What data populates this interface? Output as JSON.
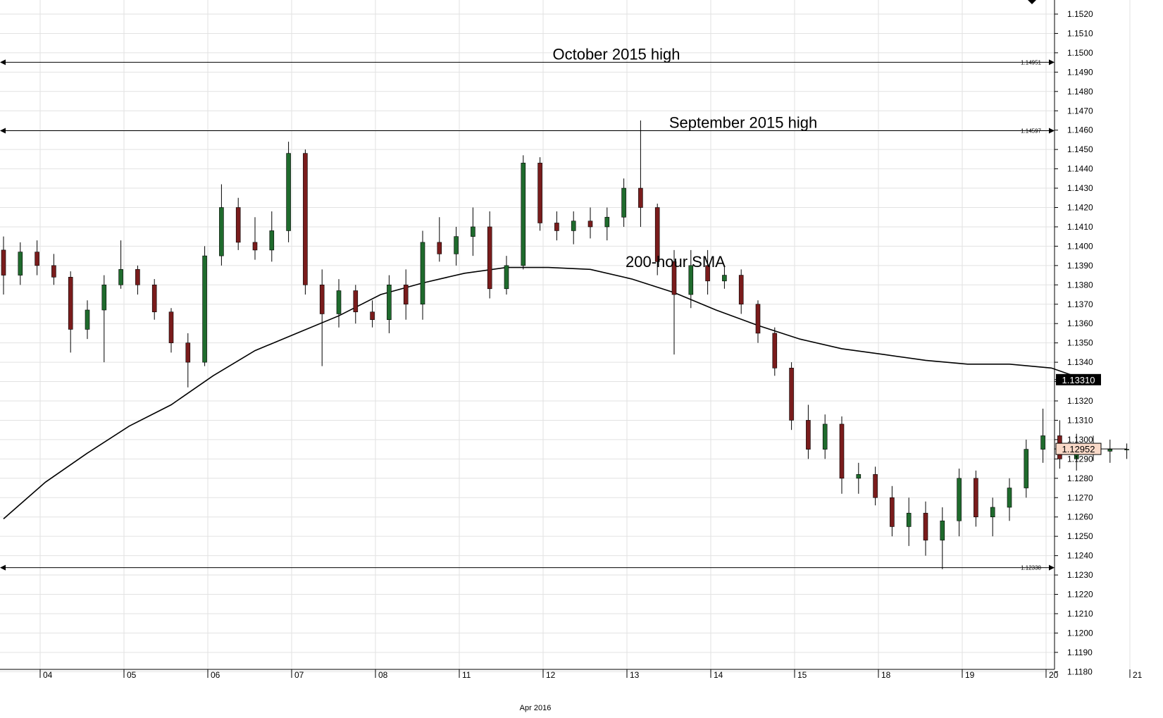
{
  "chart_data": {
    "type": "candlestick",
    "month_label": "Apr 2016",
    "x_ticks": [
      "04",
      "05",
      "06",
      "07",
      "08",
      "11",
      "12",
      "13",
      "14",
      "15",
      "18",
      "19",
      "20",
      "21"
    ],
    "y_ticks": [
      "1.1180",
      "1.1190",
      "1.1200",
      "1.1210",
      "1.1220",
      "1.1230",
      "1.1240",
      "1.1250",
      "1.1260",
      "1.1270",
      "1.1280",
      "1.1290",
      "1.1300",
      "1.1310",
      "1.1320",
      "1.1330",
      "1.1340",
      "1.1350",
      "1.1360",
      "1.1370",
      "1.1380",
      "1.1390",
      "1.1400",
      "1.1410",
      "1.1420",
      "1.1430",
      "1.1440",
      "1.1450",
      "1.1460",
      "1.1470",
      "1.1480",
      "1.1490",
      "1.1500",
      "1.1510",
      "1.1520"
    ],
    "ylim": [
      1.1173,
      1.1527
    ],
    "grid": true,
    "horizontal_lines": [
      {
        "value": 1.14951,
        "label": "October 2015 high",
        "tag": "1.14951"
      },
      {
        "value": 1.14597,
        "label": "September 2015 high",
        "tag": "1.14597"
      },
      {
        "value": 1.12338,
        "label": "",
        "tag": "1.12338"
      }
    ],
    "sma": {
      "label": "200-hour SMA",
      "last_value_label": "1.13310",
      "points": [
        {
          "t": 0.0,
          "v": 1.1259
        },
        {
          "t": 0.5,
          "v": 1.1278
        },
        {
          "t": 1.0,
          "v": 1.1293
        },
        {
          "t": 1.5,
          "v": 1.1307
        },
        {
          "t": 2.0,
          "v": 1.1318
        },
        {
          "t": 2.5,
          "v": 1.1333
        },
        {
          "t": 3.0,
          "v": 1.1346
        },
        {
          "t": 3.5,
          "v": 1.1355
        },
        {
          "t": 4.0,
          "v": 1.1364
        },
        {
          "t": 4.5,
          "v": 1.1375
        },
        {
          "t": 5.0,
          "v": 1.1381
        },
        {
          "t": 5.5,
          "v": 1.1386
        },
        {
          "t": 6.0,
          "v": 1.1389
        },
        {
          "t": 6.5,
          "v": 1.1389
        },
        {
          "t": 7.0,
          "v": 1.1388
        },
        {
          "t": 7.5,
          "v": 1.1383
        },
        {
          "t": 8.0,
          "v": 1.1376
        },
        {
          "t": 8.5,
          "v": 1.1367
        },
        {
          "t": 9.0,
          "v": 1.1359
        },
        {
          "t": 9.5,
          "v": 1.1352
        },
        {
          "t": 10.0,
          "v": 1.1347
        },
        {
          "t": 10.5,
          "v": 1.1344
        },
        {
          "t": 11.0,
          "v": 1.1341
        },
        {
          "t": 11.5,
          "v": 1.1339
        },
        {
          "t": 12.0,
          "v": 1.1339
        },
        {
          "t": 12.5,
          "v": 1.1337
        },
        {
          "t": 12.9,
          "v": 1.1331
        }
      ]
    },
    "last_price_label": "1.12952",
    "last_price_value": 1.12952,
    "ohlc": [
      {
        "t": 0.0,
        "o": 1.1398,
        "h": 1.1405,
        "l": 1.1375,
        "c": 1.1385
      },
      {
        "t": 0.2,
        "o": 1.1385,
        "h": 1.1402,
        "l": 1.138,
        "c": 1.1397
      },
      {
        "t": 0.4,
        "o": 1.1397,
        "h": 1.1403,
        "l": 1.1385,
        "c": 1.139
      },
      {
        "t": 0.6,
        "o": 1.139,
        "h": 1.1396,
        "l": 1.138,
        "c": 1.1384
      },
      {
        "t": 0.8,
        "o": 1.1384,
        "h": 1.1387,
        "l": 1.1345,
        "c": 1.1357
      },
      {
        "t": 1.0,
        "o": 1.1357,
        "h": 1.1372,
        "l": 1.1352,
        "c": 1.1367
      },
      {
        "t": 1.2,
        "o": 1.1367,
        "h": 1.1385,
        "l": 1.134,
        "c": 1.138
      },
      {
        "t": 1.4,
        "o": 1.138,
        "h": 1.1403,
        "l": 1.1378,
        "c": 1.1388
      },
      {
        "t": 1.6,
        "o": 1.1388,
        "h": 1.139,
        "l": 1.1375,
        "c": 1.138
      },
      {
        "t": 1.8,
        "o": 1.138,
        "h": 1.1383,
        "l": 1.1362,
        "c": 1.1366
      },
      {
        "t": 2.0,
        "o": 1.1366,
        "h": 1.1368,
        "l": 1.1345,
        "c": 1.135
      },
      {
        "t": 2.2,
        "o": 1.135,
        "h": 1.1355,
        "l": 1.1327,
        "c": 1.134
      },
      {
        "t": 2.4,
        "o": 1.134,
        "h": 1.14,
        "l": 1.1338,
        "c": 1.1395
      },
      {
        "t": 2.6,
        "o": 1.1395,
        "h": 1.1432,
        "l": 1.139,
        "c": 1.142
      },
      {
        "t": 2.8,
        "o": 1.142,
        "h": 1.1425,
        "l": 1.1398,
        "c": 1.1402
      },
      {
        "t": 3.0,
        "o": 1.1402,
        "h": 1.1415,
        "l": 1.1393,
        "c": 1.1398
      },
      {
        "t": 3.2,
        "o": 1.1398,
        "h": 1.1418,
        "l": 1.1392,
        "c": 1.1408
      },
      {
        "t": 3.4,
        "o": 1.1408,
        "h": 1.1454,
        "l": 1.1402,
        "c": 1.1448
      },
      {
        "t": 3.6,
        "o": 1.1448,
        "h": 1.145,
        "l": 1.1375,
        "c": 1.138
      },
      {
        "t": 3.8,
        "o": 1.138,
        "h": 1.1388,
        "l": 1.1338,
        "c": 1.1365
      },
      {
        "t": 4.0,
        "o": 1.1365,
        "h": 1.1383,
        "l": 1.1358,
        "c": 1.1377
      },
      {
        "t": 4.2,
        "o": 1.1377,
        "h": 1.138,
        "l": 1.136,
        "c": 1.1366
      },
      {
        "t": 4.4,
        "o": 1.1366,
        "h": 1.1372,
        "l": 1.1358,
        "c": 1.1362
      },
      {
        "t": 4.6,
        "o": 1.1362,
        "h": 1.1385,
        "l": 1.1355,
        "c": 1.138
      },
      {
        "t": 4.8,
        "o": 1.138,
        "h": 1.1388,
        "l": 1.1362,
        "c": 1.137
      },
      {
        "t": 5.0,
        "o": 1.137,
        "h": 1.1408,
        "l": 1.1362,
        "c": 1.1402
      },
      {
        "t": 5.2,
        "o": 1.1402,
        "h": 1.1415,
        "l": 1.1392,
        "c": 1.1396
      },
      {
        "t": 5.4,
        "o": 1.1396,
        "h": 1.141,
        "l": 1.139,
        "c": 1.1405
      },
      {
        "t": 5.6,
        "o": 1.1405,
        "h": 1.142,
        "l": 1.1395,
        "c": 1.141
      },
      {
        "t": 5.8,
        "o": 1.141,
        "h": 1.1418,
        "l": 1.1373,
        "c": 1.1378
      },
      {
        "t": 6.0,
        "o": 1.1378,
        "h": 1.1395,
        "l": 1.1375,
        "c": 1.139
      },
      {
        "t": 6.2,
        "o": 1.139,
        "h": 1.1447,
        "l": 1.1388,
        "c": 1.1443
      },
      {
        "t": 6.4,
        "o": 1.1443,
        "h": 1.1446,
        "l": 1.1408,
        "c": 1.1412
      },
      {
        "t": 6.6,
        "o": 1.1412,
        "h": 1.1418,
        "l": 1.1403,
        "c": 1.1408
      },
      {
        "t": 6.8,
        "o": 1.1408,
        "h": 1.1418,
        "l": 1.1401,
        "c": 1.1413
      },
      {
        "t": 7.0,
        "o": 1.1413,
        "h": 1.142,
        "l": 1.1404,
        "c": 1.141
      },
      {
        "t": 7.2,
        "o": 1.141,
        "h": 1.142,
        "l": 1.1403,
        "c": 1.1415
      },
      {
        "t": 7.4,
        "o": 1.1415,
        "h": 1.1435,
        "l": 1.141,
        "c": 1.143
      },
      {
        "t": 7.6,
        "o": 1.143,
        "h": 1.1465,
        "l": 1.141,
        "c": 1.142
      },
      {
        "t": 7.8,
        "o": 1.142,
        "h": 1.1422,
        "l": 1.1385,
        "c": 1.1392
      },
      {
        "t": 8.0,
        "o": 1.1392,
        "h": 1.1398,
        "l": 1.1344,
        "c": 1.1375
      },
      {
        "t": 8.2,
        "o": 1.1375,
        "h": 1.1398,
        "l": 1.1368,
        "c": 1.139
      },
      {
        "t": 8.4,
        "o": 1.139,
        "h": 1.1398,
        "l": 1.1375,
        "c": 1.1382
      },
      {
        "t": 8.6,
        "o": 1.1382,
        "h": 1.139,
        "l": 1.1378,
        "c": 1.1385
      },
      {
        "t": 8.8,
        "o": 1.1385,
        "h": 1.1388,
        "l": 1.1365,
        "c": 1.137
      },
      {
        "t": 9.0,
        "o": 1.137,
        "h": 1.1372,
        "l": 1.135,
        "c": 1.1355
      },
      {
        "t": 9.2,
        "o": 1.1355,
        "h": 1.1358,
        "l": 1.1333,
        "c": 1.1337
      },
      {
        "t": 9.4,
        "o": 1.1337,
        "h": 1.134,
        "l": 1.1305,
        "c": 1.131
      },
      {
        "t": 9.6,
        "o": 1.131,
        "h": 1.1318,
        "l": 1.129,
        "c": 1.1295
      },
      {
        "t": 9.8,
        "o": 1.1295,
        "h": 1.1313,
        "l": 1.129,
        "c": 1.1308
      },
      {
        "t": 10.0,
        "o": 1.1308,
        "h": 1.1312,
        "l": 1.1272,
        "c": 1.128
      },
      {
        "t": 10.2,
        "o": 1.128,
        "h": 1.1288,
        "l": 1.1272,
        "c": 1.1282
      },
      {
        "t": 10.4,
        "o": 1.1282,
        "h": 1.1286,
        "l": 1.1266,
        "c": 1.127
      },
      {
        "t": 10.6,
        "o": 1.127,
        "h": 1.1276,
        "l": 1.125,
        "c": 1.1255
      },
      {
        "t": 10.8,
        "o": 1.1255,
        "h": 1.127,
        "l": 1.1245,
        "c": 1.1262
      },
      {
        "t": 11.0,
        "o": 1.1262,
        "h": 1.1268,
        "l": 1.124,
        "c": 1.1248
      },
      {
        "t": 11.2,
        "o": 1.1248,
        "h": 1.1265,
        "l": 1.1233,
        "c": 1.1258
      },
      {
        "t": 11.4,
        "o": 1.1258,
        "h": 1.1285,
        "l": 1.125,
        "c": 1.128
      },
      {
        "t": 11.6,
        "o": 1.128,
        "h": 1.1284,
        "l": 1.1255,
        "c": 1.126
      },
      {
        "t": 11.8,
        "o": 1.126,
        "h": 1.127,
        "l": 1.125,
        "c": 1.1265
      },
      {
        "t": 12.0,
        "o": 1.1265,
        "h": 1.128,
        "l": 1.1258,
        "c": 1.1275
      },
      {
        "t": 12.2,
        "o": 1.1275,
        "h": 1.13,
        "l": 1.127,
        "c": 1.1295
      },
      {
        "t": 12.4,
        "o": 1.1295,
        "h": 1.1316,
        "l": 1.1288,
        "c": 1.1302
      },
      {
        "t": 12.6,
        "o": 1.1302,
        "h": 1.131,
        "l": 1.1285,
        "c": 1.129
      },
      {
        "t": 12.8,
        "o": 1.129,
        "h": 1.1303,
        "l": 1.1284,
        "c": 1.1298
      },
      {
        "t": 13.0,
        "o": 1.1298,
        "h": 1.1302,
        "l": 1.1289,
        "c": 1.1294
      },
      {
        "t": 13.2,
        "o": 1.1294,
        "h": 1.13,
        "l": 1.1288,
        "c": 1.1295
      },
      {
        "t": 13.4,
        "o": 1.1295,
        "h": 1.1298,
        "l": 1.129,
        "c": 1.1295
      }
    ]
  }
}
